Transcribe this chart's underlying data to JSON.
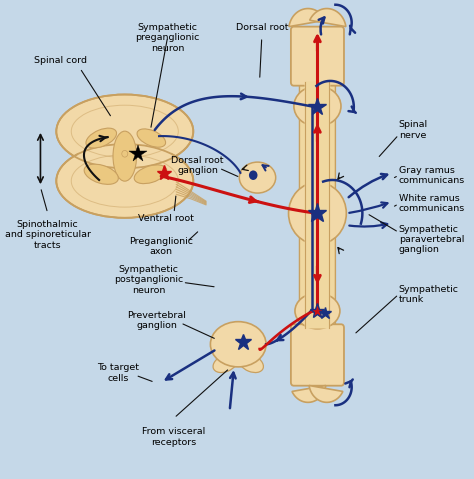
{
  "bg_color": "#c5d8e8",
  "sc_fill": "#f2d9a8",
  "sc_outline": "#c8a060",
  "sc_inner_fill": "#ebc880",
  "v_fill": "#f2d9a8",
  "v_outline": "#c8a060",
  "red": "#cc1111",
  "blue": "#1a3080",
  "dark_blue": "#1a3080",
  "black": "#111111",
  "green_dark": "#224422",
  "labels": {
    "spinal_cord": "Spinal cord",
    "sympathetic_pre": "Sympathetic\npreganglionic\nneuron",
    "dorsal_root": "Dorsal root",
    "dorsal_root_ganglion": "Dorsal root\nganglion",
    "ventral_root": "Ventral root",
    "preganglionic_axon": "Preganglionic\naxon",
    "sympathetic_post": "Sympathetic\npostganglionic\nneuron",
    "prevertebral_ganglion": "Prevertebral\nganglion",
    "to_target": "To target\ncells",
    "from_visceral": "From visceral\nreceptors",
    "spinothalmic": "Spinothalmic\nand spinoreticular\ntracts",
    "spinal_nerve": "Spinal\nnerve",
    "gray_ramus": "Gray ramus\ncommunicans",
    "white_ramus": "White ramus\ncommunicans",
    "sympathetic_para": "Sympathetic\nparavertebral\nganglion",
    "sympathetic_trunk": "Sympathetic\ntrunk"
  }
}
